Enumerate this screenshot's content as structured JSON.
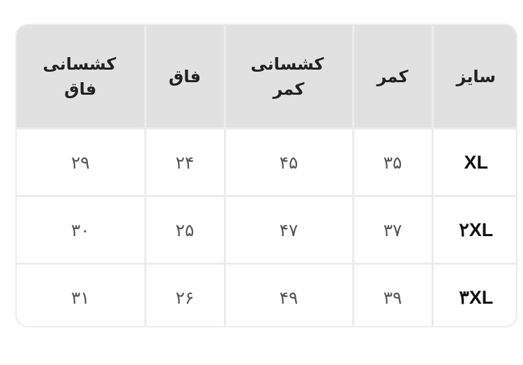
{
  "headers": [
    "سایز",
    "کمر",
    "کشسانی کمر",
    "فاق",
    "کشسانی فاق"
  ],
  "rows": [
    [
      "XL",
      "۳۵",
      "۴۵",
      "۲۴",
      "۲۹"
    ],
    [
      "۲XL",
      "۳۷",
      "۴۷",
      "۲۵",
      "۳۰"
    ],
    [
      "۳XL",
      "۳۹",
      "۴۹",
      "۲۶",
      "۳۱"
    ]
  ]
}
